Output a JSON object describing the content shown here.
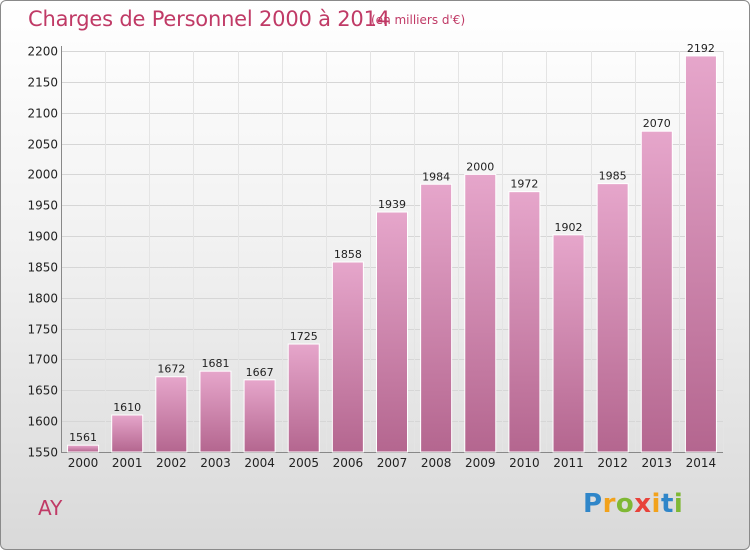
{
  "title": "Charges de Personnel 2000 à 2014",
  "subtitle": "(en milliers d'€)",
  "location": "AY",
  "logo": {
    "letters": [
      "P",
      "r",
      "o",
      "x",
      "i",
      "t",
      "i"
    ],
    "colors": [
      "#2f86c9",
      "#f2a21b",
      "#7fb834",
      "#e8423a",
      "#f2a21b",
      "#2f86c9",
      "#7fb834"
    ]
  },
  "colors": {
    "bar_top": "#e6a6cb",
    "bar_bottom": "#b4668f",
    "title": "#c03a66"
  },
  "chart_data": {
    "type": "bar",
    "categories": [
      "2000",
      "2001",
      "2002",
      "2003",
      "2004",
      "2005",
      "2006",
      "2007",
      "2008",
      "2009",
      "2010",
      "2011",
      "2012",
      "2013",
      "2014"
    ],
    "values": [
      1561,
      1610,
      1672,
      1681,
      1667,
      1725,
      1858,
      1939,
      1984,
      2000,
      1972,
      1902,
      1985,
      2070,
      2192
    ],
    "ylim": [
      1550,
      2200
    ],
    "yticks": [
      1550,
      1600,
      1650,
      1700,
      1750,
      1800,
      1850,
      1900,
      1950,
      2000,
      2050,
      2100,
      2150,
      2200
    ],
    "grid": true,
    "legend": "none"
  }
}
